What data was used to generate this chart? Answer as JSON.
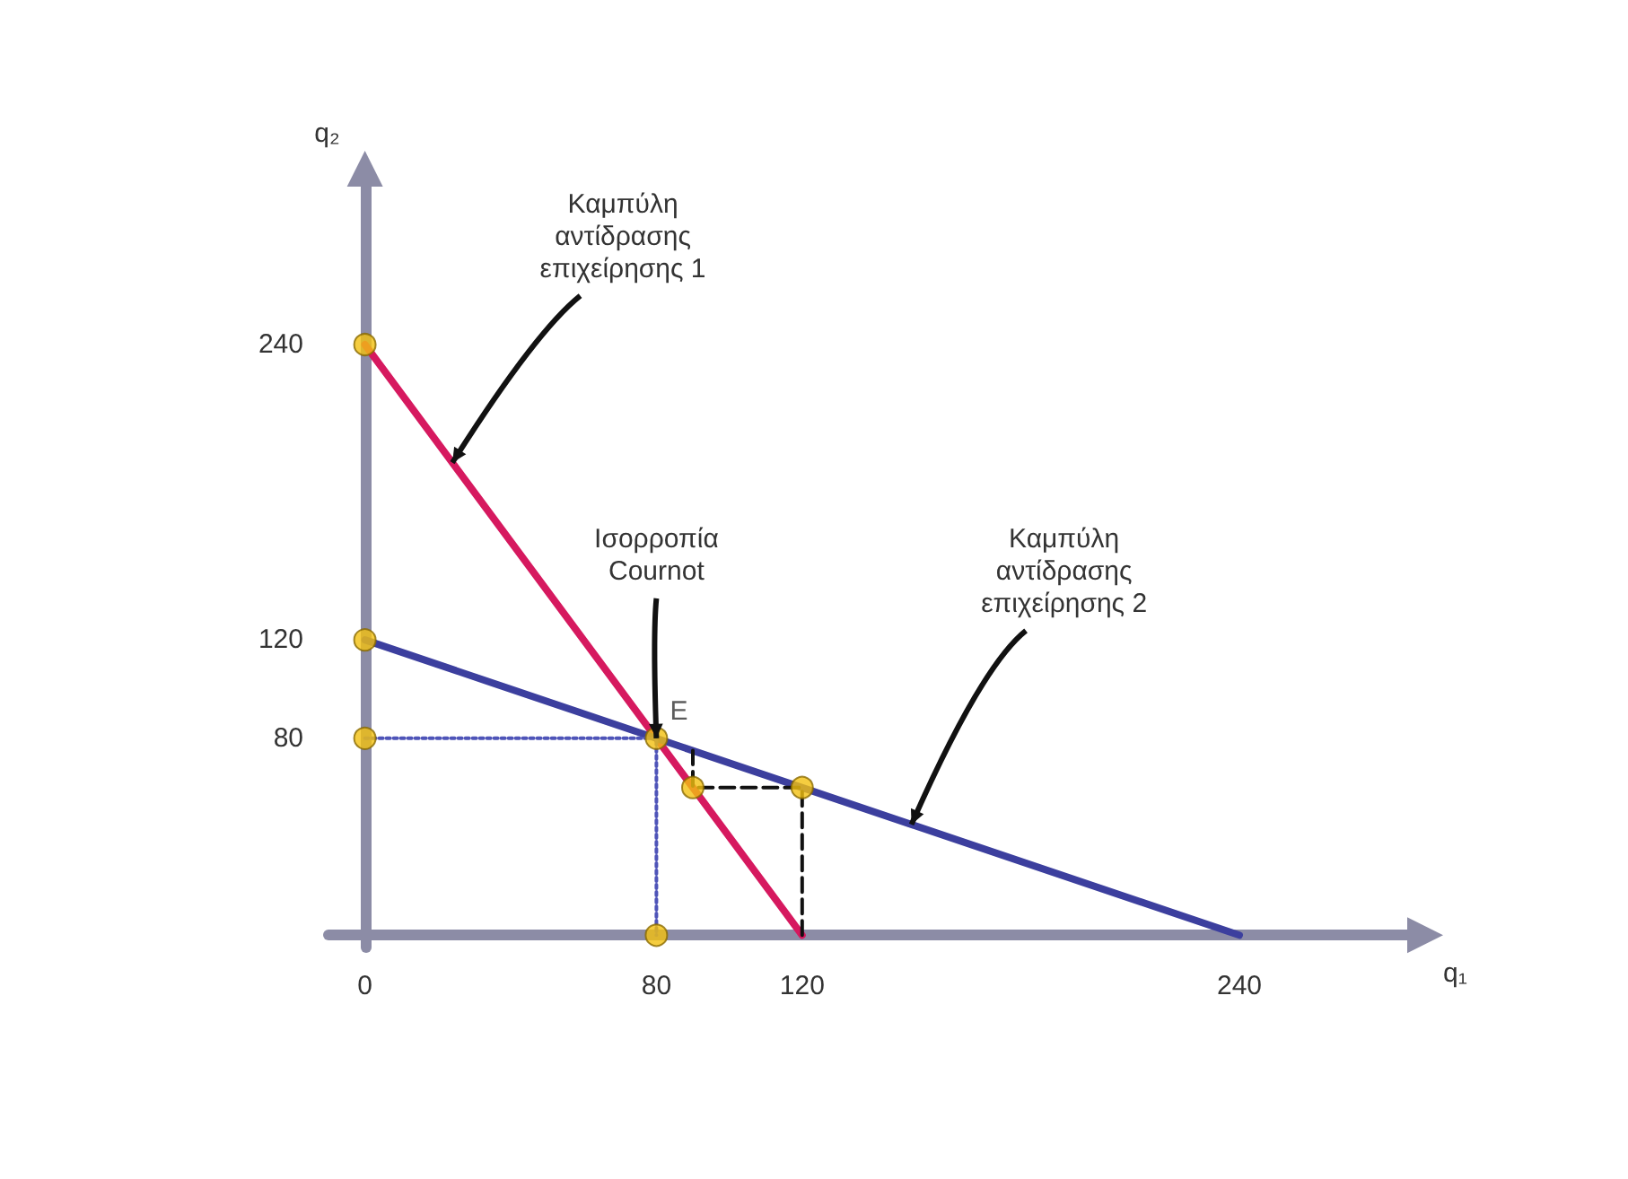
{
  "chart_data": {
    "type": "line",
    "xlabel": "q₁",
    "ylabel": "q₂",
    "xlim": [
      -10,
      290
    ],
    "ylim": [
      -5,
      310
    ],
    "xticks": [
      0,
      80,
      120,
      240
    ],
    "yticks": [
      80,
      120,
      240
    ],
    "series": [
      {
        "color": "#d6195f",
        "x": [
          0,
          120
        ],
        "values": [
          240,
          0
        ],
        "marker": "none",
        "line_style": "solid"
      },
      {
        "color": "#3c3f9e",
        "x": [
          0,
          240
        ],
        "values": [
          120,
          0
        ],
        "marker": "none",
        "line_style": "solid"
      },
      {
        "color": "#4e54b8",
        "x": [
          0,
          80,
          80
        ],
        "values": [
          80,
          80,
          0
        ],
        "marker": "none",
        "line_style": "dotted"
      },
      {
        "color": "#111111",
        "x": [
          120,
          120,
          90,
          90
        ],
        "values": [
          0,
          60,
          60,
          75
        ],
        "marker": "none",
        "line_style": "dashed"
      },
      {
        "type": "scatter",
        "color": "#f2c010",
        "x": [
          0,
          0,
          0,
          80,
          80,
          90,
          120
        ],
        "values": [
          240,
          120,
          80,
          0,
          80,
          60,
          60
        ],
        "marker": "circle",
        "value_labels": [
          null,
          null,
          null,
          null,
          "E",
          null,
          null
        ]
      }
    ],
    "annotations": [
      {
        "text": "Καμπύλη\nαντίδρασης\nεπιχείρησης 1",
        "x": 24,
        "y": 192
      },
      {
        "text": "Ισορροπία\nCournot",
        "x": 80,
        "y": 80
      },
      {
        "text": "Καμπύλη\nαντίδρασης\nεπιχείρησης 2",
        "x": 150,
        "y": 45
      }
    ]
  }
}
